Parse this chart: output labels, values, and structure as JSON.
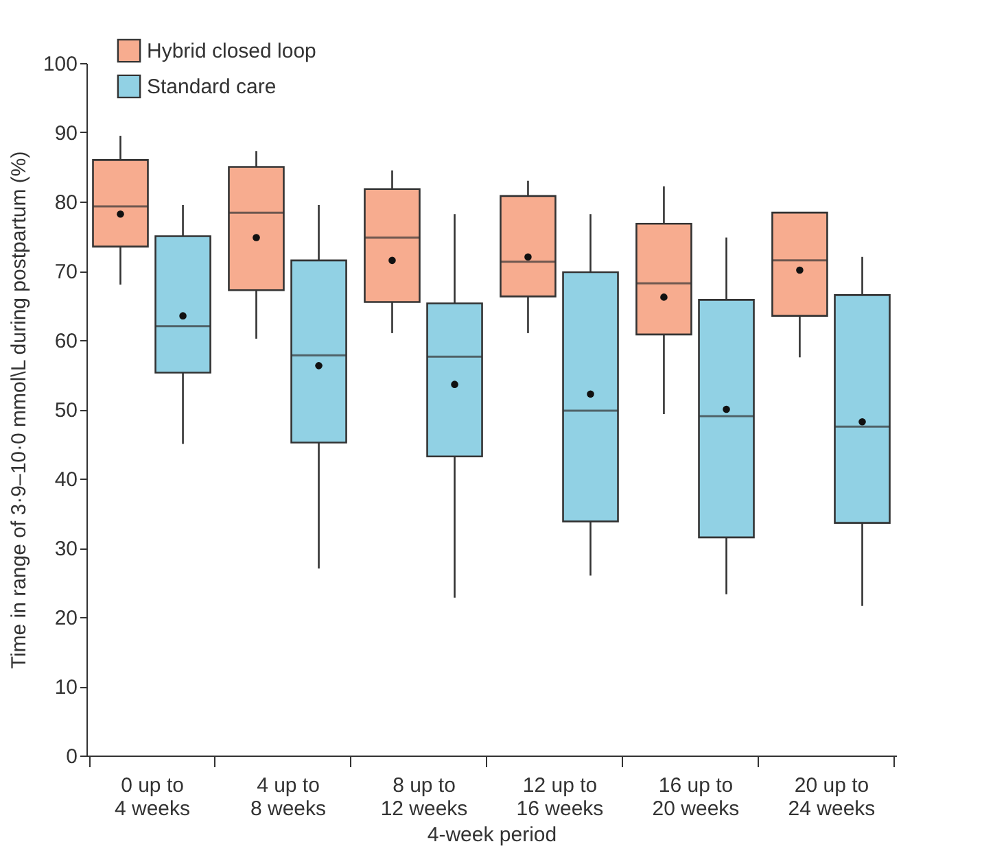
{
  "chart_data": {
    "type": "box",
    "xlabel": "4-week period",
    "ylabel": "Time in range of 3·9–10·0 mmol\\L during postpartum (%)",
    "categories": [
      "0 up to\n4 weeks",
      "4 up to\n8 weeks",
      "8 up to\n12 weeks",
      "12 up to\n16 weeks",
      "16 up to\n20 weeks",
      "20 up to\n24 weeks"
    ],
    "ylim": [
      0,
      100
    ],
    "yticks": [
      0,
      10,
      20,
      30,
      40,
      50,
      60,
      70,
      80,
      90,
      100
    ],
    "grid": false,
    "legend": "top left",
    "series": [
      {
        "name": "Hybrid closed loop",
        "color": "#f7ac8f",
        "boxes": [
          {
            "low": 68,
            "q1": 73.5,
            "median": 79.3,
            "q3": 86,
            "high": 89.5,
            "mean": 78.2
          },
          {
            "low": 60.2,
            "q1": 67.2,
            "median": 78.4,
            "q3": 85,
            "high": 87.3,
            "mean": 74.8
          },
          {
            "low": 61,
            "q1": 65.5,
            "median": 74.8,
            "q3": 81.8,
            "high": 84.5,
            "mean": 71.5
          },
          {
            "low": 61,
            "q1": 66.3,
            "median": 71.3,
            "q3": 80.8,
            "high": 83,
            "mean": 72
          },
          {
            "low": 49.3,
            "q1": 60.8,
            "median": 68.2,
            "q3": 76.8,
            "high": 82.2,
            "mean": 66.2
          },
          {
            "low": 57.5,
            "q1": 63.5,
            "median": 71.5,
            "q3": 78.4,
            "high": 78.4,
            "mean": 70.1
          }
        ]
      },
      {
        "name": "Standard care",
        "color": "#91d1e4",
        "boxes": [
          {
            "low": 45,
            "q1": 55.3,
            "median": 62,
            "q3": 75,
            "high": 79.5,
            "mean": 63.5
          },
          {
            "low": 27,
            "q1": 45.2,
            "median": 57.8,
            "q3": 71.5,
            "high": 79.5,
            "mean": 56.3
          },
          {
            "low": 22.8,
            "q1": 43.2,
            "median": 57.6,
            "q3": 65.3,
            "high": 78.2,
            "mean": 53.6
          },
          {
            "low": 26,
            "q1": 33.8,
            "median": 49.8,
            "q3": 69.8,
            "high": 78.2,
            "mean": 52.2
          },
          {
            "low": 23.3,
            "q1": 31.5,
            "median": 49,
            "q3": 65.8,
            "high": 74.8,
            "mean": 50
          },
          {
            "low": 21.6,
            "q1": 33.6,
            "median": 47.5,
            "q3": 66.5,
            "high": 72,
            "mean": 48.2
          }
        ]
      }
    ]
  }
}
